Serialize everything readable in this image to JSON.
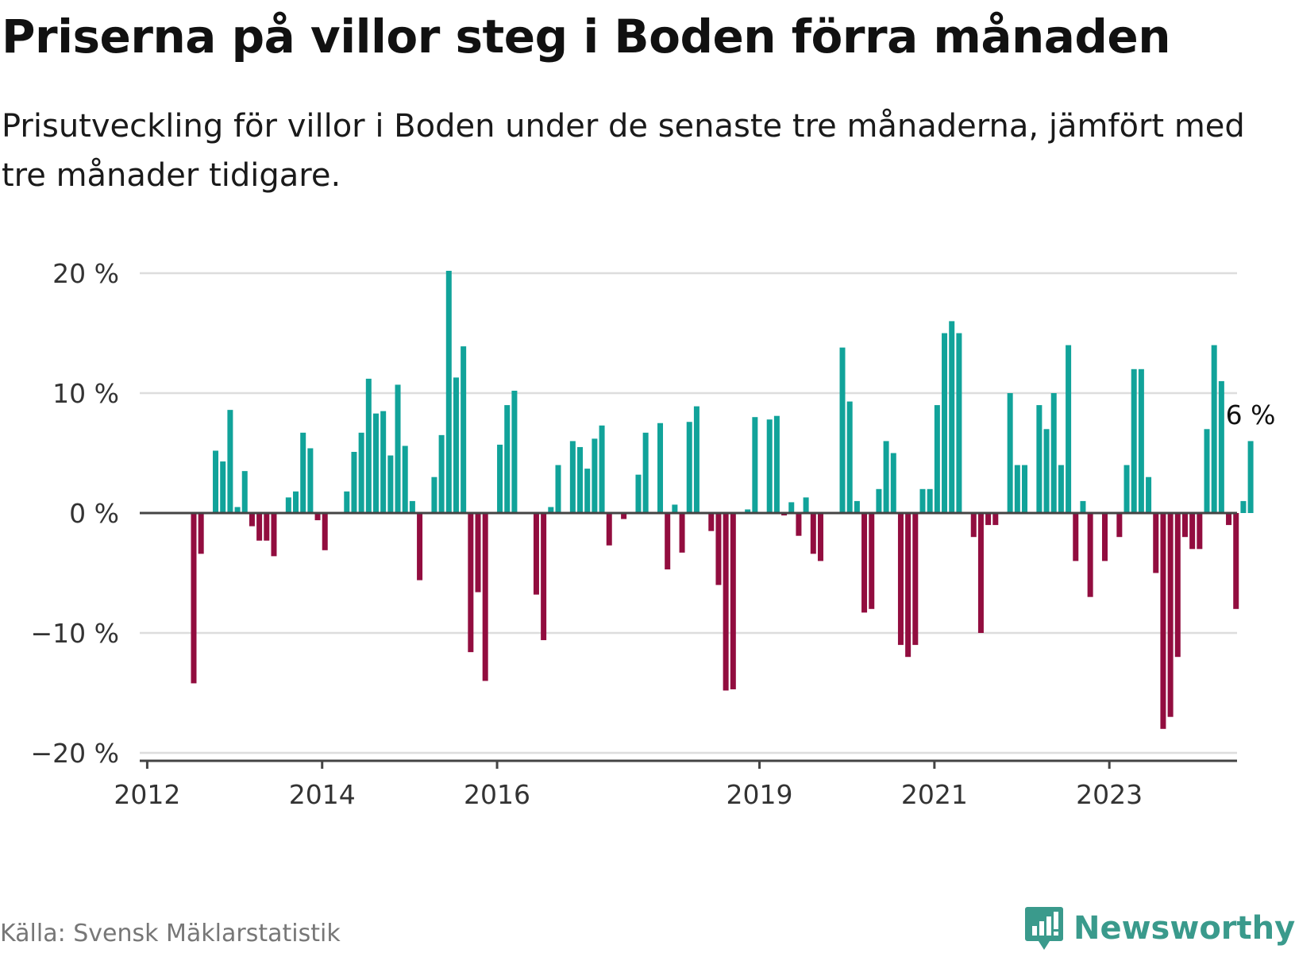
{
  "header": {
    "title": "Priserna på villor steg i Boden förra månaden",
    "subtitle": "Prisutveckling för villor i Boden under de senaste tre månaderna, jämfört med tre månader tidigare."
  },
  "footer": {
    "source": "Källa: Svensk Mäklarstatistik",
    "brand": "Newsworthy",
    "brand_icon": "newsworthy-logo-icon"
  },
  "colors": {
    "positive": "#11a39a",
    "negative": "#920d3f",
    "grid": "#dddddd",
    "axis": "#444444",
    "brand": "#3a9a8c"
  },
  "chart_data": {
    "type": "bar",
    "title": "Priserna på villor steg i Boden förra månaden",
    "xlabel": "",
    "ylabel": "",
    "ylim": [
      -20,
      20
    ],
    "grid": true,
    "legend": "none",
    "yticks": [
      {
        "value": 20,
        "label": "20 %"
      },
      {
        "value": 10,
        "label": "10 %"
      },
      {
        "value": 0,
        "label": "0 %"
      },
      {
        "value": -10,
        "label": "−10 %"
      },
      {
        "value": -20,
        "label": "−20 %"
      }
    ],
    "xticks": [
      {
        "year": 2012,
        "label": "2012"
      },
      {
        "year": 2014,
        "label": "2014"
      },
      {
        "year": 2016,
        "label": "2016"
      },
      {
        "year": 2019,
        "label": "2019"
      },
      {
        "year": 2021,
        "label": "2021"
      },
      {
        "year": 2023,
        "label": "2023"
      }
    ],
    "x_start": "2012-01",
    "annotation": {
      "label": "6 %",
      "value": 6
    },
    "values": [
      null,
      null,
      null,
      null,
      null,
      null,
      -14.2,
      -3.4,
      null,
      5.2,
      4.3,
      8.6,
      0.5,
      3.5,
      -1.1,
      -2.3,
      -2.3,
      -3.6,
      null,
      1.3,
      1.8,
      6.7,
      5.4,
      -0.6,
      -3.1,
      null,
      null,
      1.8,
      5.1,
      6.7,
      11.2,
      8.3,
      8.5,
      4.8,
      10.7,
      5.6,
      1.0,
      -5.6,
      null,
      3.0,
      6.5,
      20.2,
      11.3,
      13.9,
      -11.6,
      -6.6,
      -14.0,
      null,
      5.7,
      9.0,
      10.2,
      null,
      null,
      -6.8,
      -10.6,
      0.5,
      4.0,
      null,
      6.0,
      5.5,
      3.7,
      6.2,
      7.3,
      -2.7,
      null,
      -0.5,
      null,
      3.2,
      6.7,
      0.1,
      7.5,
      -4.7,
      0.7,
      -3.3,
      7.6,
      8.9,
      null,
      -1.5,
      -6.0,
      -14.8,
      -14.7,
      null,
      0.3,
      8.0,
      null,
      7.8,
      8.1,
      -0.2,
      0.9,
      -1.9,
      1.3,
      -3.4,
      -4.0,
      null,
      null,
      13.8,
      9.3,
      1.0,
      -8.3,
      -8.0,
      2.0,
      6.0,
      5.0,
      -11.0,
      -12.0,
      -11.0,
      2.0,
      2.0,
      9.0,
      15.0,
      16.0,
      15.0,
      null,
      -2.0,
      -10.0,
      -1.0,
      -1.0,
      null,
      10.0,
      4.0,
      4.0,
      null,
      9.0,
      7.0,
      10.0,
      4.0,
      14.0,
      -4.0,
      1.0,
      -7.0,
      null,
      -4.0,
      null,
      -2.0,
      4.0,
      12.0,
      12.0,
      3.0,
      -5.0,
      -18.0,
      -17.0,
      -12.0,
      -2.0,
      -3.0,
      -3.0,
      7.0,
      14.0,
      11.0,
      -1.0,
      -8.0,
      1.0,
      6.0
    ]
  }
}
